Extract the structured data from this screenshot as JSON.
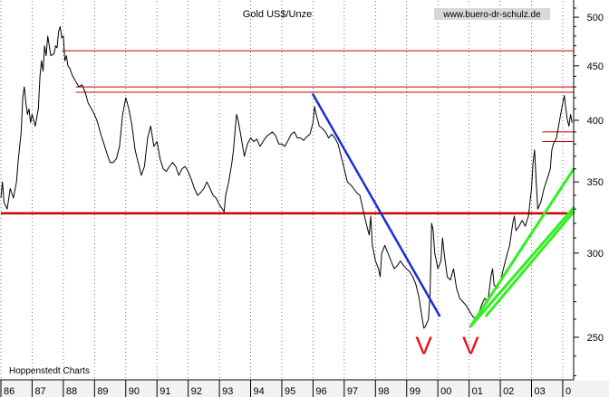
{
  "chart_data": {
    "type": "line",
    "title": "Gold US$/Unze",
    "source_label": "www.buero-dr-schulz.de",
    "credit": "Hoppenstedt Charts",
    "xlabel": "",
    "ylabel": "",
    "x_range": [
      1986.0,
      2004.35
    ],
    "ylim": [
      228,
      518
    ],
    "y_scale": "log",
    "y_ticks": [
      250,
      300,
      350,
      400,
      450,
      500
    ],
    "x_tick_labels": [
      "86",
      "87",
      "88",
      "89",
      "90",
      "91",
      "92",
      "93",
      "94",
      "95",
      "96",
      "97",
      "98",
      "99",
      "00",
      "01",
      "02",
      "03",
      "0"
    ],
    "grid": true,
    "grid_style": "dotted vertical",
    "legend": "none",
    "colors": {
      "price": "#000000",
      "support_resistance": "#cc0000",
      "downtrend": "#1a2ed6",
      "uptrend": "#33ee22",
      "bottom_marker": "#ee1111",
      "tick_panel": "#f2f2f2"
    },
    "series": [
      {
        "values": [
          [
            1986.0,
            338
          ],
          [
            1986.05,
            350
          ],
          [
            1986.1,
            335
          ],
          [
            1986.2,
            330
          ],
          [
            1986.3,
            345
          ],
          [
            1986.4,
            338
          ],
          [
            1986.5,
            350
          ],
          [
            1986.55,
            365
          ],
          [
            1986.6,
            378
          ],
          [
            1986.65,
            390
          ],
          [
            1986.7,
            420
          ],
          [
            1986.75,
            430
          ],
          [
            1986.8,
            415
          ],
          [
            1986.85,
            405
          ],
          [
            1986.9,
            410
          ],
          [
            1986.95,
            398
          ],
          [
            1987.0,
            405
          ],
          [
            1987.1,
            395
          ],
          [
            1987.2,
            410
          ],
          [
            1987.25,
            440
          ],
          [
            1987.3,
            455
          ],
          [
            1987.35,
            445
          ],
          [
            1987.4,
            470
          ],
          [
            1987.45,
            460
          ],
          [
            1987.5,
            480
          ],
          [
            1987.55,
            470
          ],
          [
            1987.6,
            460
          ],
          [
            1987.7,
            462
          ],
          [
            1987.75,
            470
          ],
          [
            1987.8,
            468
          ],
          [
            1987.85,
            485
          ],
          [
            1987.9,
            490
          ],
          [
            1987.95,
            478
          ],
          [
            1988.0,
            480
          ],
          [
            1988.05,
            455
          ],
          [
            1988.1,
            460
          ],
          [
            1988.15,
            450
          ],
          [
            1988.2,
            448
          ],
          [
            1988.3,
            440
          ],
          [
            1988.4,
            435
          ],
          [
            1988.5,
            430
          ],
          [
            1988.6,
            432
          ],
          [
            1988.7,
            425
          ],
          [
            1988.8,
            415
          ],
          [
            1988.9,
            410
          ],
          [
            1989.0,
            405
          ],
          [
            1989.1,
            398
          ],
          [
            1989.2,
            388
          ],
          [
            1989.3,
            380
          ],
          [
            1989.4,
            372
          ],
          [
            1989.5,
            365
          ],
          [
            1989.6,
            365
          ],
          [
            1989.7,
            368
          ],
          [
            1989.8,
            378
          ],
          [
            1989.9,
            405
          ],
          [
            1990.0,
            420
          ],
          [
            1990.1,
            410
          ],
          [
            1990.2,
            395
          ],
          [
            1990.3,
            375
          ],
          [
            1990.4,
            365
          ],
          [
            1990.5,
            355
          ],
          [
            1990.6,
            362
          ],
          [
            1990.7,
            385
          ],
          [
            1990.8,
            395
          ],
          [
            1990.9,
            378
          ],
          [
            1991.0,
            382
          ],
          [
            1991.1,
            368
          ],
          [
            1991.2,
            360
          ],
          [
            1991.3,
            358
          ],
          [
            1991.4,
            362
          ],
          [
            1991.5,
            365
          ],
          [
            1991.6,
            362
          ],
          [
            1991.7,
            355
          ],
          [
            1991.8,
            360
          ],
          [
            1991.9,
            362
          ],
          [
            1992.0,
            358
          ],
          [
            1992.1,
            352
          ],
          [
            1992.2,
            345
          ],
          [
            1992.3,
            340
          ],
          [
            1992.4,
            342
          ],
          [
            1992.5,
            345
          ],
          [
            1992.6,
            350
          ],
          [
            1992.7,
            345
          ],
          [
            1992.8,
            340
          ],
          [
            1992.9,
            338
          ],
          [
            1993.0,
            333
          ],
          [
            1993.1,
            330
          ],
          [
            1993.15,
            328
          ],
          [
            1993.2,
            340
          ],
          [
            1993.3,
            350
          ],
          [
            1993.4,
            365
          ],
          [
            1993.45,
            375
          ],
          [
            1993.5,
            390
          ],
          [
            1993.55,
            405
          ],
          [
            1993.6,
            400
          ],
          [
            1993.7,
            385
          ],
          [
            1993.8,
            370
          ],
          [
            1993.9,
            380
          ],
          [
            1994.0,
            385
          ],
          [
            1994.1,
            382
          ],
          [
            1994.2,
            384
          ],
          [
            1994.3,
            378
          ],
          [
            1994.4,
            382
          ],
          [
            1994.5,
            386
          ],
          [
            1994.6,
            388
          ],
          [
            1994.7,
            390
          ],
          [
            1994.8,
            387
          ],
          [
            1994.9,
            380
          ],
          [
            1995.0,
            380
          ],
          [
            1995.1,
            378
          ],
          [
            1995.2,
            383
          ],
          [
            1995.3,
            388
          ],
          [
            1995.4,
            390
          ],
          [
            1995.5,
            385
          ],
          [
            1995.6,
            385
          ],
          [
            1995.7,
            383
          ],
          [
            1995.8,
            386
          ],
          [
            1995.9,
            388
          ],
          [
            1996.0,
            398
          ],
          [
            1996.05,
            412
          ],
          [
            1996.1,
            405
          ],
          [
            1996.2,
            395
          ],
          [
            1996.3,
            393
          ],
          [
            1996.4,
            390
          ],
          [
            1996.5,
            385
          ],
          [
            1996.6,
            388
          ],
          [
            1996.7,
            385
          ],
          [
            1996.8,
            380
          ],
          [
            1996.9,
            370
          ],
          [
            1997.0,
            360
          ],
          [
            1997.1,
            350
          ],
          [
            1997.2,
            348
          ],
          [
            1997.3,
            345
          ],
          [
            1997.4,
            342
          ],
          [
            1997.5,
            340
          ],
          [
            1997.6,
            330
          ],
          [
            1997.7,
            320
          ],
          [
            1997.8,
            312
          ],
          [
            1997.85,
            325
          ],
          [
            1997.9,
            305
          ],
          [
            1998.0,
            295
          ],
          [
            1998.1,
            290
          ],
          [
            1998.15,
            285
          ],
          [
            1998.2,
            300
          ],
          [
            1998.3,
            305
          ],
          [
            1998.4,
            300
          ],
          [
            1998.5,
            295
          ],
          [
            1998.6,
            290
          ],
          [
            1998.7,
            292
          ],
          [
            1998.8,
            295
          ],
          [
            1998.9,
            292
          ],
          [
            1999.0,
            290
          ],
          [
            1999.1,
            288
          ],
          [
            1999.2,
            285
          ],
          [
            1999.3,
            280
          ],
          [
            1999.4,
            272
          ],
          [
            1999.5,
            260
          ],
          [
            1999.55,
            255
          ],
          [
            1999.6,
            256
          ],
          [
            1999.7,
            260
          ],
          [
            1999.75,
            275
          ],
          [
            1999.8,
            320
          ],
          [
            1999.85,
            315
          ],
          [
            1999.9,
            300
          ],
          [
            2000.0,
            290
          ],
          [
            2000.1,
            295
          ],
          [
            2000.15,
            310
          ],
          [
            2000.2,
            300
          ],
          [
            2000.3,
            285
          ],
          [
            2000.4,
            283
          ],
          [
            2000.5,
            290
          ],
          [
            2000.6,
            278
          ],
          [
            2000.7,
            272
          ],
          [
            2000.8,
            270
          ],
          [
            2000.9,
            268
          ],
          [
            2001.0,
            265
          ],
          [
            2001.1,
            262
          ],
          [
            2001.2,
            260
          ],
          [
            2001.3,
            263
          ],
          [
            2001.4,
            268
          ],
          [
            2001.5,
            272
          ],
          [
            2001.6,
            270
          ],
          [
            2001.7,
            285
          ],
          [
            2001.75,
            290
          ],
          [
            2001.8,
            280
          ],
          [
            2001.9,
            278
          ],
          [
            2002.0,
            282
          ],
          [
            2002.1,
            290
          ],
          [
            2002.2,
            298
          ],
          [
            2002.3,
            305
          ],
          [
            2002.4,
            320
          ],
          [
            2002.45,
            325
          ],
          [
            2002.5,
            315
          ],
          [
            2002.6,
            318
          ],
          [
            2002.7,
            322
          ],
          [
            2002.8,
            318
          ],
          [
            2002.9,
            325
          ],
          [
            2003.0,
            345
          ],
          [
            2003.05,
            365
          ],
          [
            2003.1,
            375
          ],
          [
            2003.15,
            350
          ],
          [
            2003.2,
            330
          ],
          [
            2003.3,
            335
          ],
          [
            2003.4,
            345
          ],
          [
            2003.5,
            352
          ],
          [
            2003.6,
            360
          ],
          [
            2003.65,
            375
          ],
          [
            2003.7,
            380
          ],
          [
            2003.8,
            385
          ],
          [
            2003.9,
            400
          ],
          [
            2004.0,
            415
          ],
          [
            2004.05,
            422
          ],
          [
            2004.1,
            410
          ],
          [
            2004.15,
            400
          ],
          [
            2004.2,
            395
          ],
          [
            2004.25,
            405
          ],
          [
            2004.3,
            398
          ]
        ]
      }
    ],
    "horizontal_lines": [
      {
        "y": 465,
        "x_from": 1987.95,
        "x_to": 2004.35,
        "weight": "thin"
      },
      {
        "y": 430,
        "x_from": 1988.4,
        "x_to": 2004.35,
        "weight": "thin"
      },
      {
        "y": 425,
        "x_from": 1988.4,
        "x_to": 2004.35,
        "weight": "thin"
      },
      {
        "y": 327,
        "x_from": 1986.0,
        "x_to": 2004.35,
        "weight": "thick"
      },
      {
        "y": 390,
        "x_from": 2003.35,
        "x_to": 2004.35,
        "weight": "thin"
      },
      {
        "y": 382,
        "x_from": 2003.35,
        "x_to": 2004.35,
        "weight": "thin"
      }
    ],
    "trend_lines": [
      {
        "type": "down",
        "from": [
          1996.0,
          423
        ],
        "to": [
          2000.05,
          262
        ]
      },
      {
        "type": "up",
        "from": [
          2001.05,
          256
        ],
        "to": [
          2004.35,
          360
        ]
      },
      {
        "type": "up",
        "from": [
          2001.05,
          256
        ],
        "to": [
          2004.35,
          331
        ]
      },
      {
        "type": "up",
        "from": [
          2001.55,
          262
        ],
        "to": [
          2004.35,
          328
        ]
      }
    ],
    "markers": [
      {
        "label": "V",
        "x": 1999.55,
        "y": 241
      },
      {
        "label": "V",
        "x": 2001.05,
        "y": 241
      }
    ]
  }
}
